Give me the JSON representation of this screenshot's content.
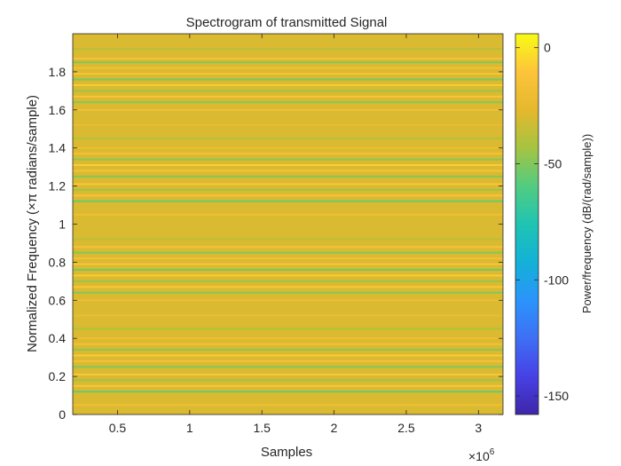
{
  "chart_data": {
    "type": "heatmap",
    "title": "Spectrogram of transmitted Signal",
    "xlabel": "Samples",
    "ylabel": "Normalized Frequency (×π radians/sample)",
    "x_exponent_label": "×10",
    "x_exponent_power": "6",
    "xlim": [
      0.19,
      3.17
    ],
    "ylim": [
      0,
      2
    ],
    "xticks": [
      0.5,
      1,
      1.5,
      2,
      2.5,
      3
    ],
    "xtick_labels": [
      "0.5",
      "1",
      "1.5",
      "2",
      "2.5",
      "3"
    ],
    "yticks": [
      0,
      0.2,
      0.4,
      0.6,
      0.8,
      1,
      1.2,
      1.4,
      1.6,
      1.8
    ],
    "ytick_labels": [
      "0",
      "0.2",
      "0.4",
      "0.6",
      "0.8",
      "1",
      "1.2",
      "1.4",
      "1.6",
      "1.8"
    ],
    "colorbar": {
      "label": "Power/frequency (dB/(rad/sample))",
      "range": [
        -158,
        6
      ],
      "ticks": [
        0,
        -50,
        -100,
        -150
      ],
      "tick_labels": [
        "0",
        "-50",
        "-100",
        "-150"
      ],
      "colormap": [
        "#3e26a8",
        "#4741e5",
        "#3e6ff4",
        "#2b94fb",
        "#13b1d7",
        "#1fc4b2",
        "#52cc81",
        "#a5c441",
        "#e5b82d",
        "#fdc43a",
        "#f9fb15"
      ]
    },
    "background_level_db": -30,
    "bands": [
      {
        "freq": 0.05,
        "level_db": -18
      },
      {
        "freq": 0.12,
        "level_db": -55
      },
      {
        "freq": 0.15,
        "level_db": -12
      },
      {
        "freq": 0.18,
        "level_db": -45
      },
      {
        "freq": 0.21,
        "level_db": -10
      },
      {
        "freq": 0.25,
        "level_db": -50
      },
      {
        "freq": 0.28,
        "level_db": -14
      },
      {
        "freq": 0.31,
        "level_db": -8
      },
      {
        "freq": 0.34,
        "level_db": -48
      },
      {
        "freq": 0.37,
        "level_db": -15
      },
      {
        "freq": 0.4,
        "level_db": -20
      },
      {
        "freq": 0.45,
        "level_db": -40
      },
      {
        "freq": 0.52,
        "level_db": -22
      },
      {
        "freq": 0.6,
        "level_db": -18
      },
      {
        "freq": 0.64,
        "level_db": -50
      },
      {
        "freq": 0.67,
        "level_db": -10
      },
      {
        "freq": 0.7,
        "level_db": -45
      },
      {
        "freq": 0.73,
        "level_db": -8
      },
      {
        "freq": 0.76,
        "level_db": -52
      },
      {
        "freq": 0.79,
        "level_db": -12
      },
      {
        "freq": 0.82,
        "level_db": -16
      },
      {
        "freq": 0.85,
        "level_db": -50
      },
      {
        "freq": 0.88,
        "level_db": -14
      },
      {
        "freq": 0.92,
        "level_db": -38
      },
      {
        "freq": 1.05,
        "level_db": -18
      },
      {
        "freq": 1.12,
        "level_db": -55
      },
      {
        "freq": 1.15,
        "level_db": -12
      },
      {
        "freq": 1.18,
        "level_db": -45
      },
      {
        "freq": 1.21,
        "level_db": -10
      },
      {
        "freq": 1.25,
        "level_db": -50
      },
      {
        "freq": 1.28,
        "level_db": -14
      },
      {
        "freq": 1.31,
        "level_db": -8
      },
      {
        "freq": 1.34,
        "level_db": -48
      },
      {
        "freq": 1.37,
        "level_db": -15
      },
      {
        "freq": 1.4,
        "level_db": -20
      },
      {
        "freq": 1.45,
        "level_db": -40
      },
      {
        "freq": 1.52,
        "level_db": -22
      },
      {
        "freq": 1.6,
        "level_db": -18
      },
      {
        "freq": 1.64,
        "level_db": -50
      },
      {
        "freq": 1.67,
        "level_db": -10
      },
      {
        "freq": 1.7,
        "level_db": -45
      },
      {
        "freq": 1.73,
        "level_db": -8
      },
      {
        "freq": 1.76,
        "level_db": -52
      },
      {
        "freq": 1.79,
        "level_db": -12
      },
      {
        "freq": 1.82,
        "level_db": -16
      },
      {
        "freq": 1.85,
        "level_db": -50
      },
      {
        "freq": 1.87,
        "level_db": -14
      },
      {
        "freq": 1.92,
        "level_db": -38
      }
    ]
  }
}
